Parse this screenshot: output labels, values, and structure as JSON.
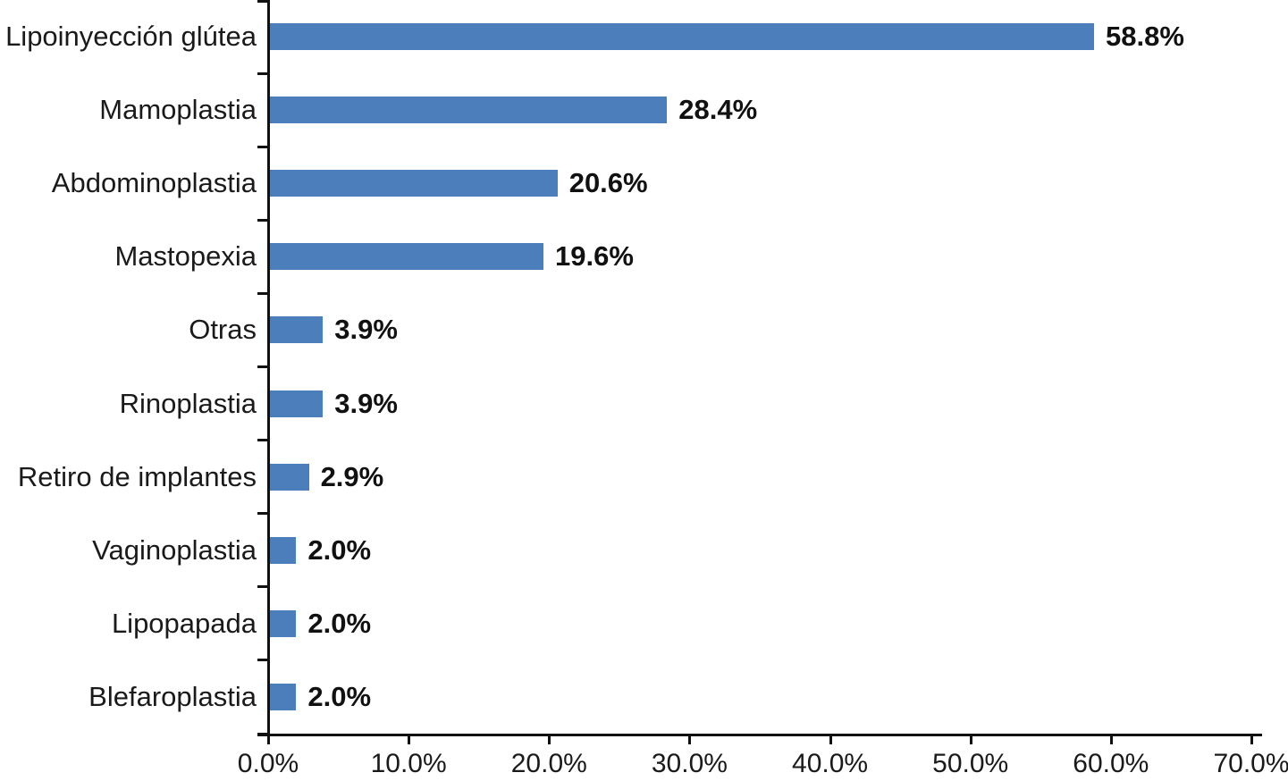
{
  "chart_data": {
    "type": "bar",
    "orientation": "horizontal",
    "title": "",
    "xlabel": "",
    "ylabel": "",
    "categories": [
      "Lipoinyección glútea",
      "Mamoplastia",
      "Abdominoplastia",
      "Mastopexia",
      "Otras",
      "Rinoplastia",
      "Retiro de implantes",
      "Vaginoplastia",
      "Lipopapada",
      "Blefaroplastia"
    ],
    "values": [
      58.8,
      28.4,
      20.6,
      19.6,
      3.9,
      3.9,
      2.9,
      2.0,
      2.0,
      2.0
    ],
    "value_labels": [
      "58.8%",
      "28.4%",
      "20.6%",
      "19.6%",
      "3.9%",
      "3.9%",
      "2.9%",
      "2.0%",
      "2.0%",
      "2.0%"
    ],
    "xlim": [
      0,
      70
    ],
    "x_tick_values": [
      0,
      10,
      20,
      30,
      40,
      50,
      60,
      70
    ],
    "x_tick_labels": [
      "0.0%",
      "10.0%",
      "20.0%",
      "30.0%",
      "40.0%",
      "50.0%",
      "60.0%",
      "70.0%"
    ],
    "grid": false,
    "legend": false,
    "colors": {
      "bar": "#4D7EBC",
      "axis": "#111111",
      "category_text": "#1a1a1a",
      "value_text": "#111111",
      "tick_text": "#1a1a1a",
      "background": "#ffffff"
    }
  }
}
